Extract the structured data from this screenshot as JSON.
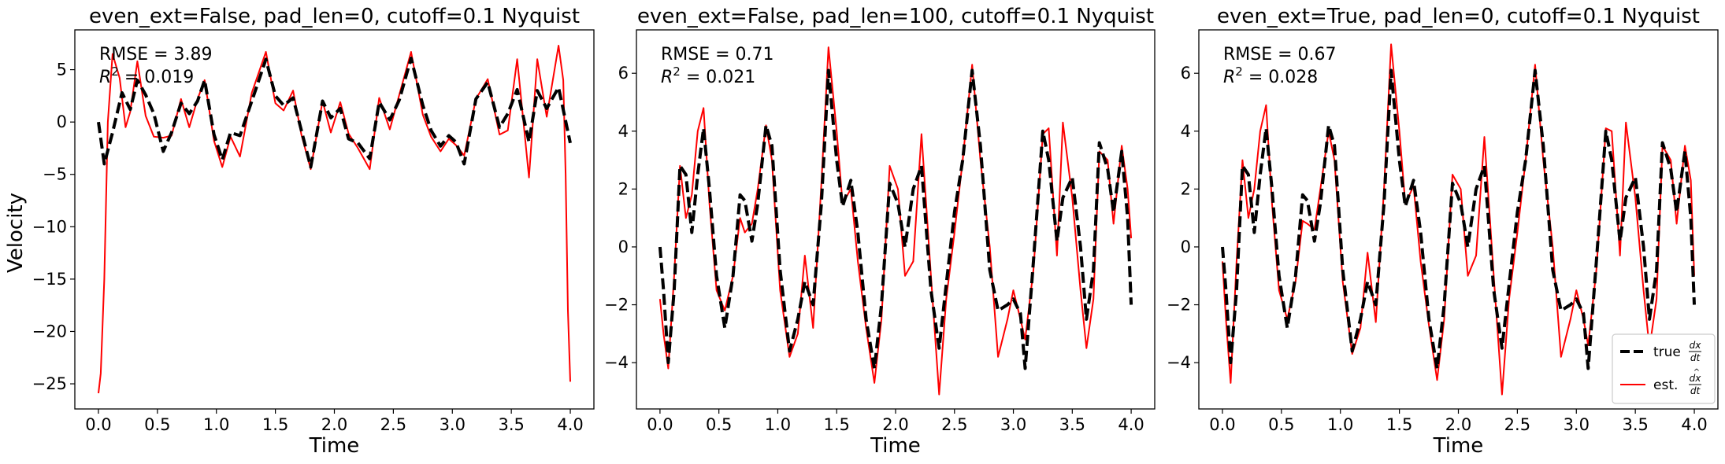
{
  "ylabel": "Velocity",
  "legend": {
    "true_label": "true",
    "est_label": "est.",
    "true_frac": "dx/dt",
    "est_frac": "dx̂/dt"
  },
  "chart_data": [
    {
      "type": "line",
      "title": "even_ext=False, pad_len=0, cutoff=0.1 Nyquist",
      "xlabel": "Time",
      "ylabel": "Velocity",
      "xlim": [
        -0.2,
        4.2
      ],
      "ylim": [
        -27.4,
        8.8
      ],
      "xticks": [
        0.0,
        0.5,
        1.0,
        1.5,
        2.0,
        2.5,
        3.0,
        3.5,
        4.0
      ],
      "xtick_labels": [
        "0.0",
        "0.5",
        "1.0",
        "1.5",
        "2.0",
        "2.5",
        "3.0",
        "3.5",
        "4.0"
      ],
      "yticks": [
        5,
        0,
        -5,
        -10,
        -15,
        -20,
        -25
      ],
      "ytick_labels": [
        "5",
        "0",
        "−5",
        "−10",
        "−15",
        "−20",
        "−25"
      ],
      "rmse_text": "RMSE = 3.89",
      "r2_value": "= 0.019",
      "legend": false,
      "series": [
        {
          "name": "true",
          "style": "dashed",
          "color": "#000000",
          "x": [
            0.0,
            0.05,
            0.12,
            0.2,
            0.27,
            0.33,
            0.4,
            0.47,
            0.55,
            0.62,
            0.7,
            0.77,
            0.84,
            0.9,
            0.98,
            1.05,
            1.12,
            1.2,
            1.3,
            1.42,
            1.5,
            1.57,
            1.65,
            1.72,
            1.8,
            1.9,
            1.97,
            2.05,
            2.12,
            2.2,
            2.3,
            2.38,
            2.47,
            2.55,
            2.65,
            2.75,
            2.82,
            2.9,
            2.97,
            3.03,
            3.1,
            3.2,
            3.3,
            3.4,
            3.47,
            3.55,
            3.65,
            3.72,
            3.8,
            3.9,
            4.0
          ],
          "y": [
            0.0,
            -4.0,
            -1.0,
            2.8,
            1.2,
            4.0,
            2.6,
            0.8,
            -2.8,
            -1.0,
            1.8,
            0.8,
            2.0,
            4.0,
            -1.2,
            -3.6,
            -1.0,
            -1.3,
            2.0,
            6.0,
            2.5,
            1.6,
            2.3,
            -0.8,
            -4.3,
            2.0,
            0.4,
            1.3,
            -1.6,
            -2.0,
            -3.5,
            1.9,
            0.2,
            2.1,
            6.1,
            1.6,
            -0.8,
            -2.3,
            -1.3,
            -1.9,
            -4.0,
            2.2,
            3.8,
            -0.5,
            0.8,
            3.1,
            -1.9,
            3.0,
            1.3,
            3.3,
            -2.0
          ]
        },
        {
          "name": "est.",
          "style": "solid",
          "color": "#ff0000",
          "x": [
            0.0,
            0.02,
            0.05,
            0.08,
            0.12,
            0.18,
            0.23,
            0.27,
            0.33,
            0.4,
            0.47,
            0.55,
            0.62,
            0.7,
            0.77,
            0.84,
            0.9,
            0.98,
            1.05,
            1.12,
            1.2,
            1.3,
            1.42,
            1.5,
            1.57,
            1.65,
            1.72,
            1.8,
            1.9,
            1.97,
            2.05,
            2.12,
            2.2,
            2.3,
            2.38,
            2.47,
            2.55,
            2.65,
            2.75,
            2.82,
            2.9,
            2.97,
            3.03,
            3.1,
            3.2,
            3.3,
            3.4,
            3.47,
            3.55,
            3.65,
            3.72,
            3.8,
            3.9,
            3.94,
            3.96,
            3.98,
            4.0
          ],
          "y": [
            -25.9,
            -24.0,
            -15.0,
            0.0,
            6.5,
            4.2,
            -0.5,
            1.0,
            5.8,
            0.6,
            -1.4,
            -1.5,
            -1.3,
            2.2,
            -0.5,
            2.2,
            4.0,
            -1.8,
            -4.3,
            -1.4,
            -3.3,
            2.8,
            6.7,
            1.8,
            1.1,
            3.0,
            -1.2,
            -4.5,
            2.0,
            -1.0,
            1.9,
            -1.1,
            -2.5,
            -4.5,
            2.3,
            -0.7,
            2.6,
            6.7,
            0.7,
            -1.4,
            -2.8,
            -1.6,
            -2.2,
            -3.2,
            2.2,
            4.1,
            -1.2,
            -0.8,
            6.0,
            -5.3,
            6.0,
            0.5,
            7.3,
            4.0,
            -5.0,
            -18.0,
            -24.8
          ]
        }
      ]
    },
    {
      "type": "line",
      "title": "even_ext=False, pad_len=100, cutoff=0.1 Nyquist",
      "xlabel": "Time",
      "ylabel": "",
      "xlim": [
        -0.2,
        4.2
      ],
      "ylim": [
        -5.6,
        7.5
      ],
      "xticks": [
        0.0,
        0.5,
        1.0,
        1.5,
        2.0,
        2.5,
        3.0,
        3.5,
        4.0
      ],
      "xtick_labels": [
        "0.0",
        "0.5",
        "1.0",
        "1.5",
        "2.0",
        "2.5",
        "3.0",
        "3.5",
        "4.0"
      ],
      "yticks": [
        6,
        4,
        2,
        0,
        -2,
        -4
      ],
      "ytick_labels": [
        "6",
        "4",
        "2",
        "0",
        "−2",
        "−4"
      ],
      "rmse_text": "RMSE = 0.71",
      "r2_value": "= 0.021",
      "legend": false,
      "series": [
        {
          "name": "true",
          "style": "dashed",
          "color": "#000000",
          "x": [
            0.0,
            0.03,
            0.07,
            0.12,
            0.17,
            0.22,
            0.27,
            0.32,
            0.37,
            0.42,
            0.48,
            0.55,
            0.62,
            0.68,
            0.72,
            0.78,
            0.83,
            0.9,
            0.95,
            1.02,
            1.1,
            1.17,
            1.23,
            1.3,
            1.37,
            1.43,
            1.5,
            1.55,
            1.62,
            1.68,
            1.75,
            1.82,
            1.88,
            1.95,
            2.02,
            2.08,
            2.15,
            2.22,
            2.3,
            2.37,
            2.43,
            2.5,
            2.57,
            2.65,
            2.72,
            2.8,
            2.87,
            2.95,
            3.0,
            3.06,
            3.1,
            3.17,
            3.25,
            3.3,
            3.37,
            3.42,
            3.5,
            3.57,
            3.62,
            3.68,
            3.73,
            3.8,
            3.85,
            3.92,
            3.97,
            4.0
          ],
          "y": [
            0.0,
            -1.5,
            -4.0,
            -1.5,
            2.8,
            2.5,
            0.5,
            2.5,
            4.1,
            2.0,
            -1.0,
            -2.8,
            -1.0,
            1.8,
            1.6,
            0.2,
            1.5,
            4.2,
            3.5,
            -0.8,
            -3.6,
            -2.5,
            -1.2,
            -2.0,
            1.5,
            6.1,
            3.0,
            1.4,
            2.3,
            0.5,
            -2.5,
            -4.2,
            -2.0,
            2.2,
            1.5,
            0.0,
            2.0,
            2.8,
            -1.5,
            -3.5,
            -1.3,
            1.2,
            3.0,
            6.1,
            3.5,
            -0.8,
            -2.2,
            -2.0,
            -1.8,
            -2.3,
            -4.2,
            -0.5,
            4.0,
            3.0,
            0.2,
            1.7,
            2.4,
            0.0,
            -2.5,
            -0.8,
            3.6,
            2.7,
            1.2,
            3.3,
            1.0,
            -2.0
          ]
        },
        {
          "name": "est.",
          "style": "solid",
          "color": "#ff0000",
          "x": [
            0.0,
            0.03,
            0.07,
            0.12,
            0.17,
            0.22,
            0.27,
            0.32,
            0.37,
            0.42,
            0.48,
            0.55,
            0.62,
            0.68,
            0.72,
            0.78,
            0.83,
            0.9,
            0.95,
            1.02,
            1.1,
            1.17,
            1.23,
            1.3,
            1.37,
            1.43,
            1.5,
            1.55,
            1.62,
            1.68,
            1.75,
            1.82,
            1.88,
            1.95,
            2.02,
            2.08,
            2.15,
            2.22,
            2.3,
            2.37,
            2.43,
            2.5,
            2.57,
            2.65,
            2.72,
            2.8,
            2.87,
            2.95,
            3.0,
            3.06,
            3.1,
            3.17,
            3.25,
            3.3,
            3.37,
            3.42,
            3.5,
            3.57,
            3.62,
            3.68,
            3.73,
            3.8,
            3.85,
            3.92,
            3.97,
            4.0
          ],
          "y": [
            -1.8,
            -3.0,
            -4.2,
            -1.0,
            2.8,
            1.0,
            1.8,
            4.0,
            4.8,
            1.5,
            -1.5,
            -2.2,
            -1.0,
            1.0,
            0.5,
            0.8,
            2.0,
            4.2,
            3.0,
            -1.5,
            -3.8,
            -3.0,
            -0.3,
            -2.8,
            2.2,
            6.9,
            4.0,
            1.5,
            2.0,
            -0.5,
            -2.8,
            -4.7,
            -2.5,
            2.8,
            2.0,
            -1.0,
            -0.5,
            3.9,
            -1.0,
            -5.1,
            -1.8,
            0.5,
            3.0,
            6.3,
            3.0,
            0.0,
            -3.8,
            -2.5,
            -1.5,
            -2.5,
            -3.2,
            -0.8,
            3.9,
            4.1,
            -0.3,
            4.3,
            1.7,
            -1.5,
            -3.5,
            -1.8,
            3.3,
            3.0,
            0.8,
            3.5,
            2.0,
            0.3
          ]
        }
      ]
    },
    {
      "type": "line",
      "title": "even_ext=True, pad_len=0, cutoff=0.1 Nyquist",
      "xlabel": "Time",
      "ylabel": "",
      "xlim": [
        -0.2,
        4.2
      ],
      "ylim": [
        -5.6,
        7.5
      ],
      "xticks": [
        0.0,
        0.5,
        1.0,
        1.5,
        2.0,
        2.5,
        3.0,
        3.5,
        4.0
      ],
      "xtick_labels": [
        "0.0",
        "0.5",
        "1.0",
        "1.5",
        "2.0",
        "2.5",
        "3.0",
        "3.5",
        "4.0"
      ],
      "yticks": [
        6,
        4,
        2,
        0,
        -2,
        -4
      ],
      "ytick_labels": [
        "6",
        "4",
        "2",
        "0",
        "−2",
        "−4"
      ],
      "rmse_text": "RMSE = 0.67",
      "r2_value": "= 0.028",
      "legend": true,
      "legend_position": "lower-right",
      "series": [
        {
          "name": "true",
          "style": "dashed",
          "color": "#000000",
          "x": [
            0.0,
            0.03,
            0.07,
            0.12,
            0.17,
            0.22,
            0.27,
            0.32,
            0.37,
            0.42,
            0.48,
            0.55,
            0.62,
            0.68,
            0.72,
            0.78,
            0.83,
            0.9,
            0.95,
            1.02,
            1.1,
            1.17,
            1.23,
            1.3,
            1.37,
            1.43,
            1.5,
            1.55,
            1.62,
            1.68,
            1.75,
            1.82,
            1.88,
            1.95,
            2.02,
            2.08,
            2.15,
            2.22,
            2.3,
            2.37,
            2.43,
            2.5,
            2.57,
            2.65,
            2.72,
            2.8,
            2.87,
            2.95,
            3.0,
            3.06,
            3.1,
            3.17,
            3.25,
            3.3,
            3.37,
            3.42,
            3.5,
            3.57,
            3.62,
            3.68,
            3.73,
            3.8,
            3.85,
            3.92,
            3.97,
            4.0
          ],
          "y": [
            0.0,
            -1.5,
            -4.0,
            -1.5,
            2.8,
            2.5,
            0.5,
            2.5,
            4.1,
            2.0,
            -1.0,
            -2.8,
            -1.0,
            1.8,
            1.6,
            0.2,
            1.5,
            4.2,
            3.5,
            -0.8,
            -3.6,
            -2.5,
            -1.2,
            -2.0,
            1.5,
            6.1,
            3.0,
            1.4,
            2.3,
            0.5,
            -2.5,
            -4.2,
            -2.0,
            2.2,
            1.5,
            0.0,
            2.0,
            2.8,
            -1.5,
            -3.5,
            -1.3,
            1.2,
            3.0,
            6.1,
            3.5,
            -0.8,
            -2.2,
            -2.0,
            -1.8,
            -2.3,
            -4.2,
            -0.5,
            4.0,
            3.0,
            0.2,
            1.7,
            2.4,
            0.0,
            -2.5,
            -0.8,
            3.6,
            2.7,
            1.2,
            3.3,
            1.0,
            -2.0
          ]
        },
        {
          "name": "est.",
          "style": "solid",
          "color": "#ff0000",
          "x": [
            0.0,
            0.03,
            0.07,
            0.12,
            0.17,
            0.22,
            0.27,
            0.32,
            0.37,
            0.42,
            0.48,
            0.55,
            0.62,
            0.68,
            0.72,
            0.78,
            0.83,
            0.9,
            0.95,
            1.02,
            1.1,
            1.17,
            1.23,
            1.3,
            1.37,
            1.43,
            1.5,
            1.55,
            1.62,
            1.68,
            1.75,
            1.82,
            1.88,
            1.95,
            2.02,
            2.08,
            2.15,
            2.22,
            2.3,
            2.37,
            2.43,
            2.5,
            2.57,
            2.65,
            2.72,
            2.8,
            2.87,
            2.95,
            3.0,
            3.06,
            3.1,
            3.17,
            3.25,
            3.3,
            3.37,
            3.42,
            3.5,
            3.57,
            3.62,
            3.68,
            3.73,
            3.8,
            3.85,
            3.92,
            3.97,
            4.0
          ],
          "y": [
            -0.5,
            -2.5,
            -4.7,
            -0.5,
            3.0,
            1.0,
            2.0,
            4.0,
            4.9,
            1.5,
            -1.5,
            -2.5,
            -1.2,
            0.9,
            0.8,
            0.6,
            2.0,
            4.0,
            3.0,
            -1.2,
            -3.7,
            -2.8,
            -0.2,
            -2.6,
            2.0,
            7.0,
            4.0,
            1.5,
            2.1,
            -0.5,
            -2.7,
            -4.6,
            -2.5,
            2.5,
            2.0,
            -1.0,
            -0.3,
            3.8,
            -1.0,
            -5.1,
            -1.8,
            0.5,
            3.0,
            6.3,
            3.0,
            0.0,
            -3.8,
            -2.5,
            -1.5,
            -2.5,
            -3.4,
            -0.8,
            4.1,
            4.0,
            -0.3,
            4.3,
            1.7,
            -1.5,
            -3.5,
            -1.8,
            3.5,
            3.0,
            0.8,
            3.5,
            2.3,
            -1.0
          ]
        }
      ]
    }
  ]
}
